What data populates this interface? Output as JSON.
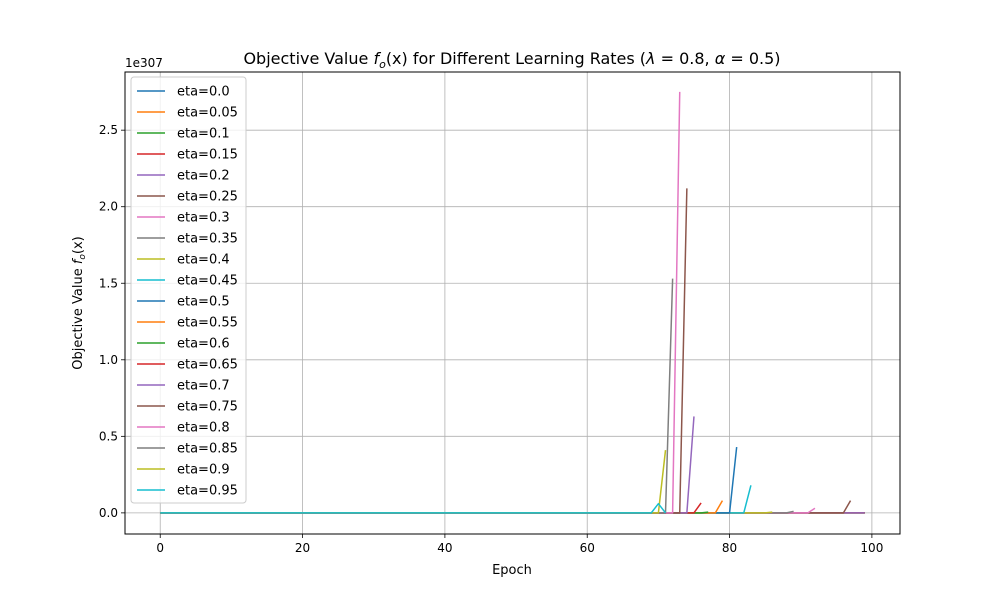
{
  "chart_data": {
    "type": "line",
    "title": "Objective Value f_o(x) for Different Learning Rates (λ = 0.8, α = 0.5)",
    "title_parts": {
      "prefix": "Objective Value ",
      "f": "f",
      "sub": "o",
      "x": "(x)",
      "middle": " for Different Learning Rates (",
      "lambda": "λ",
      "lambda_eq": " = 0.8, ",
      "alpha": "α",
      "alpha_eq": " = 0.5)"
    },
    "xlabel": "Epoch",
    "ylabel": "Objective Value f_o(x)",
    "ylabel_parts": {
      "prefix": "Objective Value ",
      "f": "f",
      "sub": "o",
      "x": "(x)"
    },
    "y_scale_label": "1e307",
    "xlim": [
      -4.95,
      103.95
    ],
    "ylim": [
      -0.138,
      2.88
    ],
    "x_ticks": [
      0,
      20,
      40,
      60,
      80,
      100
    ],
    "x_tick_labels": [
      "0",
      "20",
      "40",
      "60",
      "80",
      "100"
    ],
    "y_ticks": [
      0.0,
      0.5,
      1.0,
      1.5,
      2.0,
      2.5
    ],
    "y_tick_labels": [
      "0.0",
      "0.5",
      "1.0",
      "1.5",
      "2.0",
      "2.5"
    ],
    "grid": true,
    "legend_position": "upper-left",
    "series": [
      {
        "name": "eta=0.0",
        "color": "#1f77b4",
        "points": [
          [
            0,
            0
          ],
          [
            99,
            0
          ]
        ]
      },
      {
        "name": "eta=0.05",
        "color": "#ff7f0e",
        "points": [
          [
            0,
            0
          ],
          [
            99,
            0
          ]
        ]
      },
      {
        "name": "eta=0.1",
        "color": "#2ca02c",
        "points": [
          [
            0,
            0
          ],
          [
            99,
            0
          ]
        ]
      },
      {
        "name": "eta=0.15",
        "color": "#d62728",
        "points": [
          [
            0,
            0
          ],
          [
            99,
            0
          ]
        ]
      },
      {
        "name": "eta=0.2",
        "color": "#9467bd",
        "points": [
          [
            0,
            0
          ],
          [
            99,
            0
          ]
        ]
      },
      {
        "name": "eta=0.25",
        "color": "#8c564b",
        "points": [
          [
            0,
            0
          ],
          [
            96,
            0
          ],
          [
            97,
            0.08
          ]
        ]
      },
      {
        "name": "eta=0.3",
        "color": "#e377c2",
        "points": [
          [
            0,
            0
          ],
          [
            91,
            0
          ],
          [
            92,
            0.03
          ]
        ]
      },
      {
        "name": "eta=0.35",
        "color": "#7f7f7f",
        "points": [
          [
            0,
            0
          ],
          [
            88,
            0
          ],
          [
            89,
            0.01
          ]
        ]
      },
      {
        "name": "eta=0.4",
        "color": "#bcbd22",
        "points": [
          [
            0,
            0
          ],
          [
            85,
            0
          ],
          [
            86,
            0.005
          ]
        ]
      },
      {
        "name": "eta=0.45",
        "color": "#17becf",
        "points": [
          [
            0,
            0
          ],
          [
            82,
            0
          ],
          [
            83,
            0.18
          ]
        ]
      },
      {
        "name": "eta=0.5",
        "color": "#1f77b4",
        "points": [
          [
            0,
            0
          ],
          [
            80,
            0
          ],
          [
            81,
            0.43
          ]
        ]
      },
      {
        "name": "eta=0.55",
        "color": "#ff7f0e",
        "points": [
          [
            0,
            0
          ],
          [
            78,
            0
          ],
          [
            79,
            0.08
          ]
        ]
      },
      {
        "name": "eta=0.6",
        "color": "#2ca02c",
        "points": [
          [
            0,
            0
          ],
          [
            76,
            0
          ],
          [
            77,
            0.005
          ]
        ]
      },
      {
        "name": "eta=0.65",
        "color": "#d62728",
        "points": [
          [
            0,
            0
          ],
          [
            75,
            0
          ],
          [
            76,
            0.065
          ]
        ]
      },
      {
        "name": "eta=0.7",
        "color": "#9467bd",
        "points": [
          [
            0,
            0
          ],
          [
            74,
            0
          ],
          [
            75,
            0.63
          ]
        ]
      },
      {
        "name": "eta=0.75",
        "color": "#8c564b",
        "points": [
          [
            0,
            0
          ],
          [
            73,
            0
          ],
          [
            74,
            2.12
          ]
        ]
      },
      {
        "name": "eta=0.8",
        "color": "#e377c2",
        "points": [
          [
            0,
            0
          ],
          [
            72,
            0
          ],
          [
            73,
            2.75
          ]
        ]
      },
      {
        "name": "eta=0.85",
        "color": "#7f7f7f",
        "points": [
          [
            0,
            0
          ],
          [
            71,
            0
          ],
          [
            72,
            1.53
          ]
        ]
      },
      {
        "name": "eta=0.9",
        "color": "#bcbd22",
        "points": [
          [
            0,
            0
          ],
          [
            70,
            0
          ],
          [
            71,
            0.41
          ]
        ]
      },
      {
        "name": "eta=0.95",
        "color": "#17becf",
        "points": [
          [
            0,
            0
          ],
          [
            69,
            0
          ],
          [
            70,
            0.06
          ],
          [
            71,
            0
          ]
        ]
      }
    ]
  }
}
